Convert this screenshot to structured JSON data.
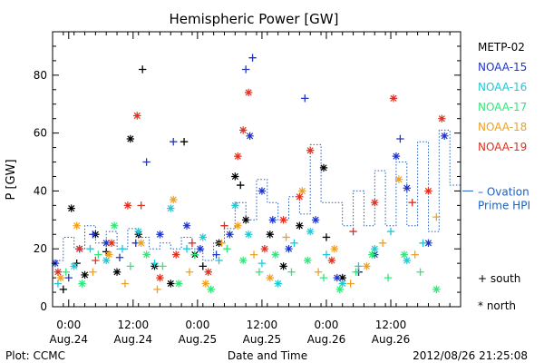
{
  "chart_data": {
    "type": "scatter",
    "title": "Hemispheric Power [GW]",
    "xlabel": "Date and Time",
    "ylabel": "P [GW]",
    "xlim": [
      "2012-08-23T21:00",
      "2012-08-27T01:00"
    ],
    "ylim": [
      0,
      95
    ],
    "yticks": [
      0,
      20,
      40,
      60,
      80
    ],
    "xticks": [
      {
        "t": "2012-08-24T00:00",
        "line1": "0:00",
        "line2": "Aug.24"
      },
      {
        "t": "2012-08-24T12:00",
        "line1": "12:00",
        "line2": "Aug.24"
      },
      {
        "t": "2012-08-25T00:00",
        "line1": "0:00",
        "line2": "Aug.25"
      },
      {
        "t": "2012-08-25T12:00",
        "line1": "12:00",
        "line2": "Aug.25"
      },
      {
        "t": "2012-08-26T00:00",
        "line1": "0:00",
        "line2": "Aug.26"
      },
      {
        "t": "2012-08-26T12:00",
        "line1": "12:00",
        "line2": "Aug.26"
      }
    ],
    "legend_placement": "right",
    "symbols": [
      {
        "glyph": "+",
        "label": "south"
      },
      {
        "glyph": "*",
        "label": "north"
      }
    ],
    "ovation": {
      "label_line1": "Ovation",
      "label_line2": "Prime HPI",
      "color": "#1f5fbf",
      "x": [
        "2012-08-23T21:00",
        "2012-08-23T23:00",
        "2012-08-24T01:00",
        "2012-08-24T03:00",
        "2012-08-24T05:00",
        "2012-08-24T07:00",
        "2012-08-24T09:00",
        "2012-08-24T11:00",
        "2012-08-24T13:00",
        "2012-08-24T15:00",
        "2012-08-24T17:00",
        "2012-08-24T19:00",
        "2012-08-24T21:00",
        "2012-08-24T23:00",
        "2012-08-25T01:00",
        "2012-08-25T03:00",
        "2012-08-25T05:00",
        "2012-08-25T07:00",
        "2012-08-25T09:00",
        "2012-08-25T11:00",
        "2012-08-25T13:00",
        "2012-08-25T15:00",
        "2012-08-25T17:00",
        "2012-08-25T19:00",
        "2012-08-25T21:00",
        "2012-08-25T23:00",
        "2012-08-26T01:00",
        "2012-08-26T03:00",
        "2012-08-26T05:00",
        "2012-08-26T07:00",
        "2012-08-26T09:00",
        "2012-08-26T11:00",
        "2012-08-26T13:00",
        "2012-08-26T15:00",
        "2012-08-26T17:00",
        "2012-08-26T19:00",
        "2012-08-26T21:00",
        "2012-08-26T23:00"
      ],
      "y": [
        16,
        24,
        20,
        28,
        22,
        26,
        20,
        27,
        24,
        20,
        22,
        20,
        24,
        20,
        16,
        22,
        27,
        36,
        30,
        44,
        36,
        30,
        38,
        32,
        56,
        36,
        36,
        28,
        40,
        28,
        47,
        28,
        50,
        28,
        57,
        26,
        61,
        42
      ]
    },
    "series": [
      {
        "name": "METP-02",
        "color": "#000000",
        "points": [
          {
            "x": "2012-08-23T23:00",
            "y": 6,
            "s": "+"
          },
          {
            "x": "2012-08-24T00:30",
            "y": 34,
            "s": "*"
          },
          {
            "x": "2012-08-24T01:30",
            "y": 15,
            "s": "+"
          },
          {
            "x": "2012-08-24T03:00",
            "y": 11,
            "s": "*"
          },
          {
            "x": "2012-08-24T05:00",
            "y": 25,
            "s": "*"
          },
          {
            "x": "2012-08-24T07:00",
            "y": 19,
            "s": "+"
          },
          {
            "x": "2012-08-24T09:00",
            "y": 12,
            "s": "*"
          },
          {
            "x": "2012-08-24T11:30",
            "y": 58,
            "s": "*"
          },
          {
            "x": "2012-08-24T13:00",
            "y": 25,
            "s": "*"
          },
          {
            "x": "2012-08-24T13:45",
            "y": 82,
            "s": "+"
          },
          {
            "x": "2012-08-24T16:00",
            "y": 14,
            "s": "*"
          },
          {
            "x": "2012-08-24T19:00",
            "y": 8,
            "s": "*"
          },
          {
            "x": "2012-08-24T21:30",
            "y": 57,
            "s": "+"
          },
          {
            "x": "2012-08-24T23:30",
            "y": 18,
            "s": "*"
          },
          {
            "x": "2012-08-25T01:00",
            "y": 14,
            "s": "+"
          },
          {
            "x": "2012-08-25T04:00",
            "y": 22,
            "s": "*"
          },
          {
            "x": "2012-08-25T07:00",
            "y": 45,
            "s": "*"
          },
          {
            "x": "2012-08-25T08:00",
            "y": 42,
            "s": "+"
          },
          {
            "x": "2012-08-25T09:00",
            "y": 30,
            "s": "*"
          },
          {
            "x": "2012-08-25T13:30",
            "y": 25,
            "s": "*"
          },
          {
            "x": "2012-08-25T16:00",
            "y": 14,
            "s": "*"
          },
          {
            "x": "2012-08-25T19:00",
            "y": 28,
            "s": "*"
          },
          {
            "x": "2012-08-25T23:30",
            "y": 48,
            "s": "*"
          },
          {
            "x": "2012-08-26T00:00",
            "y": 24,
            "s": "+"
          },
          {
            "x": "2012-08-26T03:00",
            "y": 10,
            "s": "*"
          },
          {
            "x": "2012-08-26T06:00",
            "y": 12,
            "s": "+"
          }
        ]
      },
      {
        "name": "NOAA-15",
        "color": "#1f35c8",
        "points": [
          {
            "x": "2012-08-23T21:30",
            "y": 15,
            "s": "*"
          },
          {
            "x": "2012-08-24T00:00",
            "y": 10,
            "s": "+"
          },
          {
            "x": "2012-08-24T02:00",
            "y": 20,
            "s": "*"
          },
          {
            "x": "2012-08-24T04:30",
            "y": 25,
            "s": "+"
          },
          {
            "x": "2012-08-24T07:00",
            "y": 22,
            "s": "*"
          },
          {
            "x": "2012-08-24T09:30",
            "y": 17,
            "s": "+"
          },
          {
            "x": "2012-08-24T12:30",
            "y": 22,
            "s": "+"
          },
          {
            "x": "2012-08-24T14:30",
            "y": 50,
            "s": "+"
          },
          {
            "x": "2012-08-24T17:00",
            "y": 25,
            "s": "*"
          },
          {
            "x": "2012-08-24T19:30",
            "y": 57,
            "s": "+"
          },
          {
            "x": "2012-08-24T22:00",
            "y": 28,
            "s": "*"
          },
          {
            "x": "2012-08-25T00:30",
            "y": 20,
            "s": "*"
          },
          {
            "x": "2012-08-25T03:30",
            "y": 18,
            "s": "+"
          },
          {
            "x": "2012-08-25T06:00",
            "y": 25,
            "s": "*"
          },
          {
            "x": "2012-08-25T09:00",
            "y": 82,
            "s": "+"
          },
          {
            "x": "2012-08-25T09:45",
            "y": 59,
            "s": "*"
          },
          {
            "x": "2012-08-25T10:15",
            "y": 86,
            "s": "+"
          },
          {
            "x": "2012-08-25T12:00",
            "y": 40,
            "s": "*"
          },
          {
            "x": "2012-08-25T14:00",
            "y": 30,
            "s": "*"
          },
          {
            "x": "2012-08-25T17:00",
            "y": 20,
            "s": "*"
          },
          {
            "x": "2012-08-25T20:00",
            "y": 72,
            "s": "+"
          },
          {
            "x": "2012-08-25T22:00",
            "y": 30,
            "s": "*"
          },
          {
            "x": "2012-08-26T02:00",
            "y": 10,
            "s": "*"
          },
          {
            "x": "2012-08-26T06:00",
            "y": 12,
            "s": "+"
          },
          {
            "x": "2012-08-26T09:00",
            "y": 18,
            "s": "*"
          },
          {
            "x": "2012-08-26T13:00",
            "y": 52,
            "s": "*"
          },
          {
            "x": "2012-08-26T13:45",
            "y": 58,
            "s": "+"
          },
          {
            "x": "2012-08-26T15:00",
            "y": 41,
            "s": "*"
          },
          {
            "x": "2012-08-26T19:00",
            "y": 22,
            "s": "*"
          },
          {
            "x": "2012-08-26T22:00",
            "y": 59,
            "s": "*"
          }
        ]
      },
      {
        "name": "NOAA-16",
        "color": "#1fc8d8",
        "points": [
          {
            "x": "2012-08-23T22:00",
            "y": 8,
            "s": "+"
          },
          {
            "x": "2012-08-24T01:00",
            "y": 14,
            "s": "*"
          },
          {
            "x": "2012-08-24T04:00",
            "y": 20,
            "s": "+"
          },
          {
            "x": "2012-08-24T07:00",
            "y": 16,
            "s": "*"
          },
          {
            "x": "2012-08-24T10:00",
            "y": 20,
            "s": "+"
          },
          {
            "x": "2012-08-24T13:00",
            "y": 26,
            "s": "*"
          },
          {
            "x": "2012-08-24T16:00",
            "y": 15,
            "s": "+"
          },
          {
            "x": "2012-08-24T19:00",
            "y": 34,
            "s": "*"
          },
          {
            "x": "2012-08-24T22:00",
            "y": 20,
            "s": "+"
          },
          {
            "x": "2012-08-25T01:00",
            "y": 24,
            "s": "*"
          },
          {
            "x": "2012-08-25T04:00",
            "y": 16,
            "s": "+"
          },
          {
            "x": "2012-08-25T07:00",
            "y": 35,
            "s": "*"
          },
          {
            "x": "2012-08-25T09:30",
            "y": 25,
            "s": "*"
          },
          {
            "x": "2012-08-25T12:00",
            "y": 15,
            "s": "+"
          },
          {
            "x": "2012-08-25T15:00",
            "y": 8,
            "s": "*"
          },
          {
            "x": "2012-08-25T18:00",
            "y": 22,
            "s": "+"
          },
          {
            "x": "2012-08-25T21:00",
            "y": 26,
            "s": "*"
          },
          {
            "x": "2012-08-26T00:00",
            "y": 18,
            "s": "+"
          },
          {
            "x": "2012-08-26T03:00",
            "y": 8,
            "s": "*"
          },
          {
            "x": "2012-08-26T06:00",
            "y": 14,
            "s": "+"
          },
          {
            "x": "2012-08-26T09:00",
            "y": 20,
            "s": "*"
          },
          {
            "x": "2012-08-26T12:00",
            "y": 26,
            "s": "+"
          },
          {
            "x": "2012-08-26T15:00",
            "y": 16,
            "s": "*"
          },
          {
            "x": "2012-08-26T18:00",
            "y": 22,
            "s": "+"
          }
        ]
      },
      {
        "name": "NOAA-17",
        "color": "#2fe878",
        "points": [
          {
            "x": "2012-08-23T23:30",
            "y": 12,
            "s": "+"
          },
          {
            "x": "2012-08-24T02:30",
            "y": 8,
            "s": "*"
          },
          {
            "x": "2012-08-24T05:30",
            "y": 18,
            "s": "+"
          },
          {
            "x": "2012-08-24T08:30",
            "y": 28,
            "s": "*"
          },
          {
            "x": "2012-08-24T11:30",
            "y": 14,
            "s": "+"
          },
          {
            "x": "2012-08-24T14:30",
            "y": 18,
            "s": "*"
          },
          {
            "x": "2012-08-24T17:30",
            "y": 14,
            "s": "+"
          },
          {
            "x": "2012-08-24T20:30",
            "y": 8,
            "s": "*"
          },
          {
            "x": "2012-08-24T23:30",
            "y": 18,
            "s": "+"
          },
          {
            "x": "2012-08-25T02:30",
            "y": 6,
            "s": "*"
          },
          {
            "x": "2012-08-25T05:30",
            "y": 20,
            "s": "+"
          },
          {
            "x": "2012-08-25T08:30",
            "y": 16,
            "s": "*"
          },
          {
            "x": "2012-08-25T11:30",
            "y": 12,
            "s": "+"
          },
          {
            "x": "2012-08-25T14:30",
            "y": 18,
            "s": "*"
          },
          {
            "x": "2012-08-25T17:30",
            "y": 12,
            "s": "+"
          },
          {
            "x": "2012-08-25T20:30",
            "y": 16,
            "s": "*"
          },
          {
            "x": "2012-08-25T23:30",
            "y": 10,
            "s": "+"
          },
          {
            "x": "2012-08-26T02:30",
            "y": 6,
            "s": "*"
          },
          {
            "x": "2012-08-26T05:30",
            "y": 12,
            "s": "+"
          },
          {
            "x": "2012-08-26T08:30",
            "y": 18,
            "s": "*"
          },
          {
            "x": "2012-08-26T11:30",
            "y": 10,
            "s": "+"
          },
          {
            "x": "2012-08-26T14:30",
            "y": 18,
            "s": "*"
          },
          {
            "x": "2012-08-26T17:30",
            "y": 12,
            "s": "+"
          },
          {
            "x": "2012-08-26T20:30",
            "y": 6,
            "s": "*"
          }
        ]
      },
      {
        "name": "NOAA-18",
        "color": "#f0a020",
        "points": [
          {
            "x": "2012-08-23T22:30",
            "y": 10,
            "s": "*"
          },
          {
            "x": "2012-08-24T01:30",
            "y": 28,
            "s": "*"
          },
          {
            "x": "2012-08-24T04:30",
            "y": 12,
            "s": "+"
          },
          {
            "x": "2012-08-24T07:30",
            "y": 18,
            "s": "*"
          },
          {
            "x": "2012-08-24T10:30",
            "y": 8,
            "s": "+"
          },
          {
            "x": "2012-08-24T13:30",
            "y": 22,
            "s": "*"
          },
          {
            "x": "2012-08-24T16:30",
            "y": 6,
            "s": "+"
          },
          {
            "x": "2012-08-24T19:30",
            "y": 37,
            "s": "*"
          },
          {
            "x": "2012-08-24T22:30",
            "y": 12,
            "s": "+"
          },
          {
            "x": "2012-08-25T01:30",
            "y": 8,
            "s": "*"
          },
          {
            "x": "2012-08-25T04:30",
            "y": 22,
            "s": "+"
          },
          {
            "x": "2012-08-25T07:30",
            "y": 28,
            "s": "*"
          },
          {
            "x": "2012-08-25T10:30",
            "y": 18,
            "s": "+"
          },
          {
            "x": "2012-08-25T13:30",
            "y": 10,
            "s": "*"
          },
          {
            "x": "2012-08-25T16:30",
            "y": 24,
            "s": "+"
          },
          {
            "x": "2012-08-25T19:30",
            "y": 40,
            "s": "*"
          },
          {
            "x": "2012-08-25T22:30",
            "y": 12,
            "s": "+"
          },
          {
            "x": "2012-08-26T01:30",
            "y": 20,
            "s": "*"
          },
          {
            "x": "2012-08-26T04:30",
            "y": 8,
            "s": "+"
          },
          {
            "x": "2012-08-26T07:30",
            "y": 14,
            "s": "*"
          },
          {
            "x": "2012-08-26T10:30",
            "y": 22,
            "s": "+"
          },
          {
            "x": "2012-08-26T13:30",
            "y": 44,
            "s": "*"
          },
          {
            "x": "2012-08-26T16:30",
            "y": 18,
            "s": "+"
          },
          {
            "x": "2012-08-26T20:30",
            "y": 31,
            "s": "+"
          }
        ]
      },
      {
        "name": "NOAA-19",
        "color": "#e03020",
        "points": [
          {
            "x": "2012-08-23T22:00",
            "y": 12,
            "s": "*"
          },
          {
            "x": "2012-08-24T02:00",
            "y": 20,
            "s": "*"
          },
          {
            "x": "2012-08-24T05:00",
            "y": 16,
            "s": "+"
          },
          {
            "x": "2012-08-24T08:00",
            "y": 22,
            "s": "*"
          },
          {
            "x": "2012-08-24T11:00",
            "y": 35,
            "s": "*"
          },
          {
            "x": "2012-08-24T12:45",
            "y": 66,
            "s": "*"
          },
          {
            "x": "2012-08-24T13:30",
            "y": 35,
            "s": "+"
          },
          {
            "x": "2012-08-24T17:00",
            "y": 10,
            "s": "*"
          },
          {
            "x": "2012-08-24T20:00",
            "y": 18,
            "s": "*"
          },
          {
            "x": "2012-08-24T23:00",
            "y": 22,
            "s": "+"
          },
          {
            "x": "2012-08-25T02:00",
            "y": 12,
            "s": "*"
          },
          {
            "x": "2012-08-25T05:00",
            "y": 28,
            "s": "+"
          },
          {
            "x": "2012-08-25T07:30",
            "y": 52,
            "s": "*"
          },
          {
            "x": "2012-08-25T08:30",
            "y": 61,
            "s": "*"
          },
          {
            "x": "2012-08-25T09:30",
            "y": 74,
            "s": "*"
          },
          {
            "x": "2012-08-25T12:30",
            "y": 20,
            "s": "*"
          },
          {
            "x": "2012-08-25T16:00",
            "y": 30,
            "s": "*"
          },
          {
            "x": "2012-08-25T19:00",
            "y": 38,
            "s": "*"
          },
          {
            "x": "2012-08-25T21:00",
            "y": 54,
            "s": "*"
          },
          {
            "x": "2012-08-26T01:00",
            "y": 16,
            "s": "*"
          },
          {
            "x": "2012-08-26T05:00",
            "y": 26,
            "s": "+"
          },
          {
            "x": "2012-08-26T09:00",
            "y": 36,
            "s": "*"
          },
          {
            "x": "2012-08-26T12:30",
            "y": 72,
            "s": "*"
          },
          {
            "x": "2012-08-26T16:00",
            "y": 36,
            "s": "+"
          },
          {
            "x": "2012-08-26T19:00",
            "y": 40,
            "s": "*"
          },
          {
            "x": "2012-08-26T21:30",
            "y": 65,
            "s": "*"
          }
        ]
      }
    ]
  },
  "footer": {
    "left": "Plot: CCMC",
    "right": "2012/08/26 21:25:08"
  }
}
